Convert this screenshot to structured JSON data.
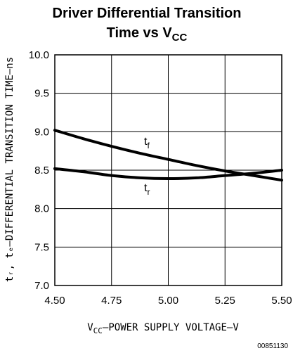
{
  "chart_data": {
    "type": "line",
    "title_line1": "Driver Differential Transition",
    "title_line2": "Time vs V",
    "title_sub": "CC",
    "xlabel_pre": "V",
    "xlabel_sub": "CC",
    "xlabel_post": "–POWER SUPPLY VOLTAGE–V",
    "ylabel": "tᵣ, tₑ–DIFFERENTIAL TRANSITION TIME–ns",
    "xlim": [
      4.5,
      5.5
    ],
    "ylim": [
      7.0,
      10.0
    ],
    "x_ticks": [
      "4.50",
      "4.75",
      "5.00",
      "5.25",
      "5.50"
    ],
    "y_ticks": [
      "7.0",
      "7.5",
      "8.0",
      "8.5",
      "9.0",
      "9.5",
      "10.0"
    ],
    "grid": true,
    "series": [
      {
        "name": "t",
        "name_sub": "f",
        "x": [
          4.5,
          4.625,
          4.75,
          4.875,
          5.0,
          5.125,
          5.25,
          5.375,
          5.5
        ],
        "y": [
          9.02,
          8.91,
          8.81,
          8.72,
          8.64,
          8.56,
          8.49,
          8.43,
          8.37
        ]
      },
      {
        "name": "t",
        "name_sub": "r",
        "x": [
          4.5,
          4.625,
          4.75,
          4.875,
          5.0,
          5.125,
          5.25,
          5.375,
          5.5
        ],
        "y": [
          8.52,
          8.48,
          8.43,
          8.4,
          8.39,
          8.4,
          8.43,
          8.46,
          8.5
        ]
      }
    ],
    "figure_code": "00851130"
  }
}
